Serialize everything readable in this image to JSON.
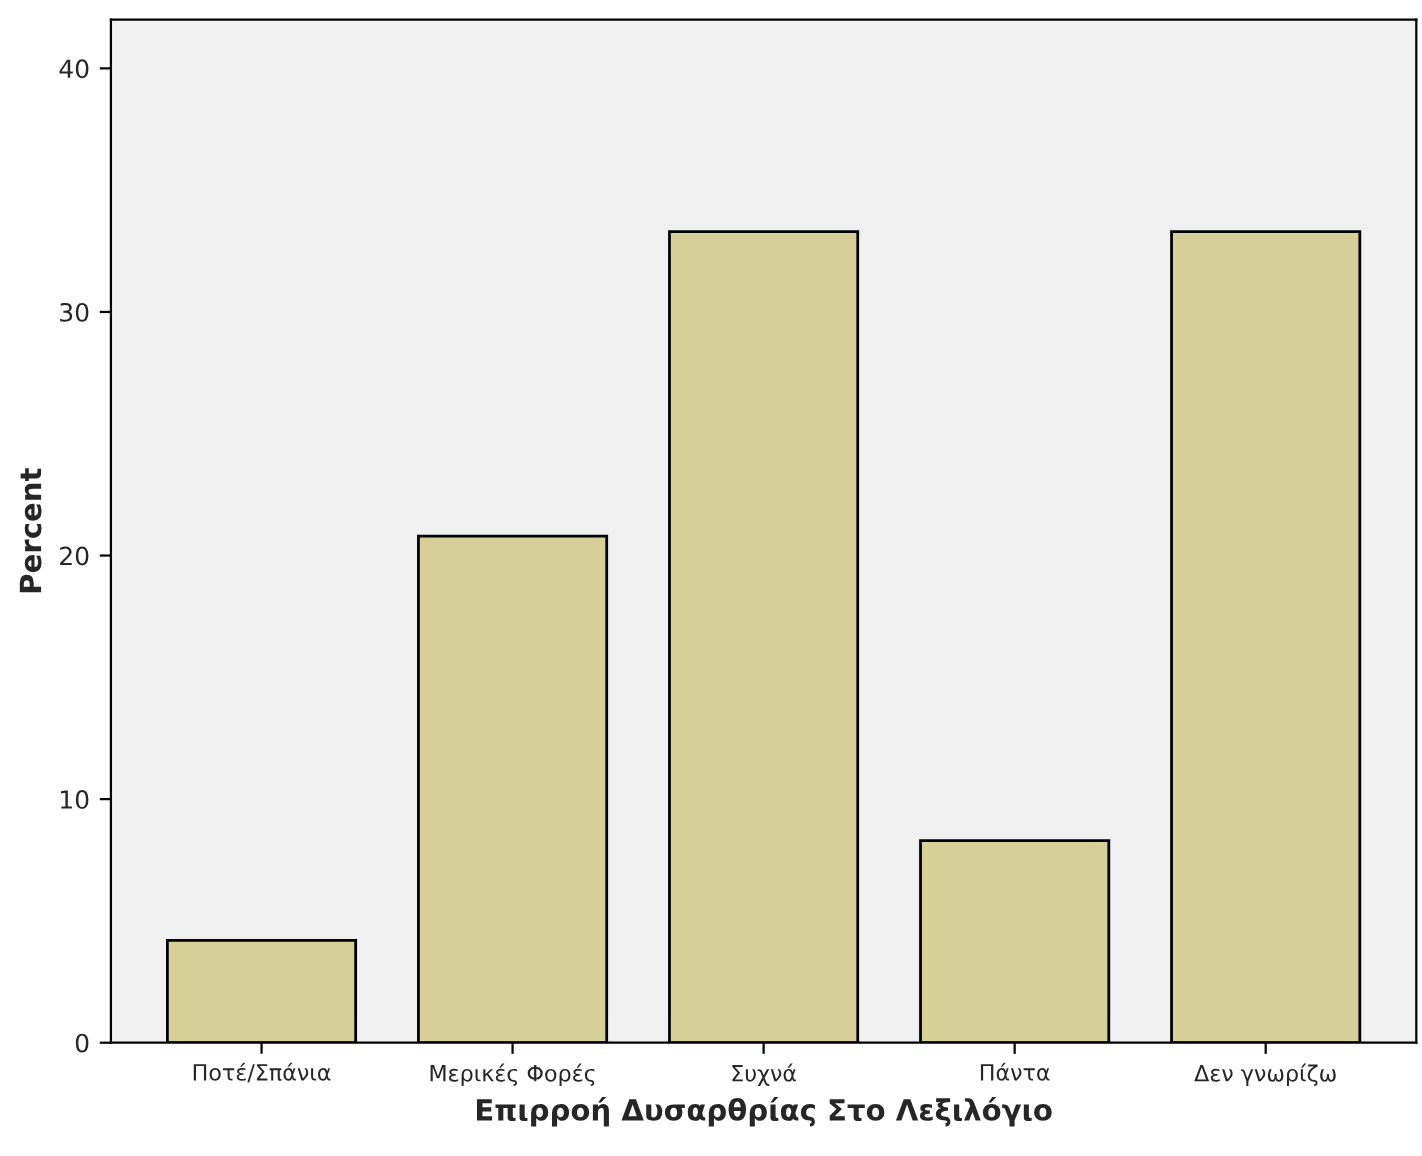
{
  "chart_data": {
    "type": "bar",
    "xlabel": "Επιρροή Δυσαρθρίας Στο Λεξιλόγιο",
    "ylabel": "Percent",
    "categories": [
      "Ποτέ/Σπάνια",
      "Μερικές Φορές",
      "Συχνά",
      "Πάντα",
      "Δεν γνωρίζω"
    ],
    "values": [
      4.2,
      20.8,
      33.3,
      8.3,
      33.3
    ],
    "color": "#d6cf98",
    "ylim": [
      0,
      42
    ],
    "yticks": [
      0,
      10,
      20,
      30,
      40
    ],
    "grid": false
  }
}
